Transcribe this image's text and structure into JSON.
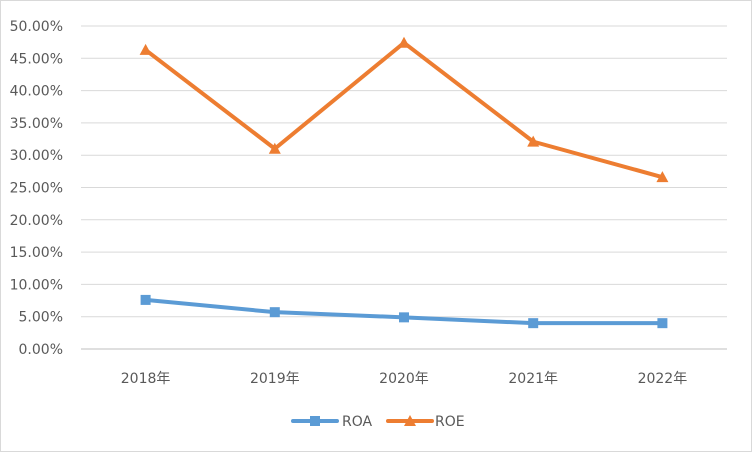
{
  "chart_data": {
    "type": "line",
    "categories": [
      "2018年",
      "2019年",
      "2020年",
      "2021年",
      "2022年"
    ],
    "series": [
      {
        "name": "ROA",
        "values": [
          7.6,
          5.7,
          4.9,
          4.0,
          4.0
        ],
        "color": "#5b9bd5",
        "marker": "square"
      },
      {
        "name": "ROE",
        "values": [
          46.3,
          31.0,
          47.4,
          32.1,
          26.6
        ],
        "color": "#ed7d31",
        "marker": "triangle"
      }
    ],
    "y_ticks": [
      "0.00%",
      "5.00%",
      "10.00%",
      "15.00%",
      "20.00%",
      "25.00%",
      "30.00%",
      "35.00%",
      "40.00%",
      "45.00%",
      "50.00%"
    ],
    "ylim": [
      0,
      50
    ],
    "grid": true,
    "legend_position": "bottom",
    "title": "",
    "xlabel": "",
    "ylabel": ""
  }
}
